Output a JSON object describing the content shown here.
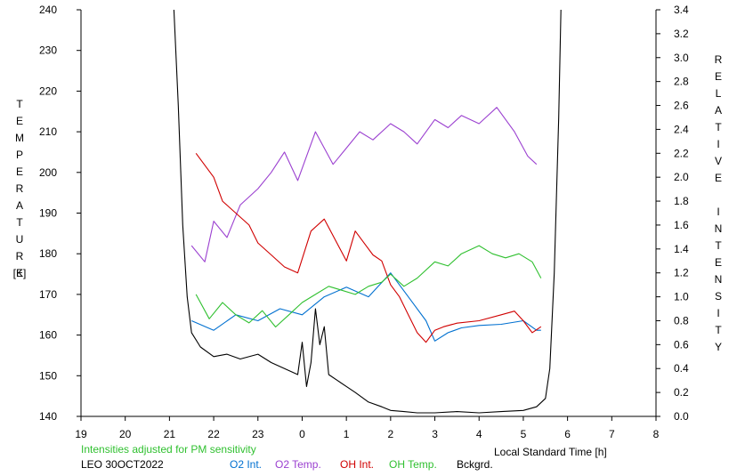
{
  "chart_data": {
    "type": "line",
    "title": "",
    "xlabel": "Local Standard Time [h]",
    "ylabel_left": "TEMPERATURE",
    "ylabel_left_unit": "[K]",
    "ylabel_right": "RELATIVE INTENSITY",
    "x_ticks": [
      "19",
      "20",
      "21",
      "22",
      "23",
      "0",
      "1",
      "2",
      "3",
      "4",
      "5",
      "6",
      "7",
      "8"
    ],
    "xlim": [
      19,
      32
    ],
    "ylim_left": [
      140,
      240
    ],
    "ylim_right": [
      0.0,
      3.4
    ],
    "y_left_ticks": [
      140,
      150,
      160,
      170,
      180,
      190,
      200,
      210,
      220,
      230,
      240
    ],
    "y_right_ticks": [
      "0.0",
      "0.2",
      "0.4",
      "0.6",
      "0.8",
      "1.0",
      "1.2",
      "1.4",
      "1.6",
      "1.8",
      "2.0",
      "2.2",
      "2.4",
      "2.6",
      "2.8",
      "3.0",
      "3.2",
      "3.4"
    ],
    "note": "Intensities adjusted for PM sensitivity",
    "station": "LEO 30OCT2022",
    "colors": {
      "o2_int": "#0070d0",
      "o2_temp": "#9b40d0",
      "oh_int": "#d00000",
      "oh_temp": "#30c030",
      "bckgrd": "#000000",
      "note": "#30c030"
    },
    "legend": [
      {
        "key": "o2_int",
        "label": "O2 Int."
      },
      {
        "key": "o2_temp",
        "label": "O2 Temp."
      },
      {
        "key": "oh_int",
        "label": "OH Int."
      },
      {
        "key": "oh_temp",
        "label": "OH Temp."
      },
      {
        "key": "bckgrd",
        "label": "Bckgrd."
      }
    ],
    "series": [
      {
        "name": "Bckgrd.",
        "key": "bckgrd",
        "axis": "right",
        "x": [
          21.1,
          21.2,
          21.3,
          21.4,
          21.5,
          21.7,
          22.0,
          22.3,
          22.6,
          23.0,
          23.3,
          23.6,
          23.9,
          24.0,
          24.1,
          24.2,
          24.3,
          24.4,
          24.5,
          24.6,
          24.8,
          25.0,
          25.2,
          25.5,
          25.8,
          26.0,
          26.3,
          26.6,
          27.0,
          27.5,
          28.0,
          28.5,
          29.0,
          29.3,
          29.5,
          29.6,
          29.7,
          29.8,
          29.85
        ],
        "y": [
          3.4,
          2.6,
          1.6,
          1.0,
          0.7,
          0.58,
          0.5,
          0.52,
          0.48,
          0.52,
          0.45,
          0.4,
          0.35,
          0.62,
          0.25,
          0.45,
          0.9,
          0.6,
          0.75,
          0.35,
          0.3,
          0.25,
          0.2,
          0.12,
          0.08,
          0.05,
          0.04,
          0.03,
          0.03,
          0.04,
          0.03,
          0.04,
          0.05,
          0.08,
          0.15,
          0.4,
          1.2,
          2.5,
          3.4
        ]
      },
      {
        "name": "O2 Int.",
        "key": "o2_int",
        "axis": "right",
        "x": [
          21.5,
          22.0,
          22.5,
          23.0,
          23.5,
          24.0,
          24.5,
          25.0,
          25.5,
          26.0,
          26.3,
          26.5,
          26.8,
          27.0,
          27.3,
          27.6,
          28.0,
          28.5,
          29.0,
          29.3,
          29.4
        ],
        "y": [
          0.8,
          0.72,
          0.85,
          0.8,
          0.9,
          0.85,
          1.0,
          1.08,
          1.0,
          1.2,
          1.05,
          0.95,
          0.8,
          0.63,
          0.7,
          0.74,
          0.76,
          0.77,
          0.8,
          0.72,
          0.72
        ]
      },
      {
        "name": "O2 Temp.",
        "key": "o2_temp",
        "axis": "left",
        "x": [
          21.5,
          21.8,
          22.0,
          22.3,
          22.6,
          23.0,
          23.3,
          23.6,
          23.9,
          24.3,
          24.7,
          25.0,
          25.3,
          25.6,
          26.0,
          26.3,
          26.6,
          27.0,
          27.3,
          27.6,
          28.0,
          28.4,
          28.8,
          29.1,
          29.3
        ],
        "y": [
          182,
          178,
          188,
          184,
          192,
          196,
          200,
          205,
          198,
          210,
          202,
          206,
          210,
          208,
          212,
          210,
          207,
          213,
          211,
          214,
          212,
          216,
          210,
          204,
          202
        ]
      },
      {
        "name": "OH Int.",
        "key": "oh_int",
        "axis": "right",
        "x": [
          21.6,
          21.8,
          22.0,
          22.2,
          22.5,
          22.8,
          23.0,
          23.3,
          23.6,
          23.9,
          24.2,
          24.5,
          25.0,
          25.2,
          25.4,
          25.6,
          25.8,
          26.0,
          26.2,
          26.4,
          26.6,
          26.8,
          27.0,
          27.2,
          27.5,
          28.0,
          28.5,
          28.8,
          29.0,
          29.2,
          29.4
        ],
        "y": [
          2.2,
          2.1,
          2.0,
          1.8,
          1.7,
          1.6,
          1.45,
          1.35,
          1.25,
          1.2,
          1.55,
          1.65,
          1.3,
          1.55,
          1.45,
          1.35,
          1.3,
          1.1,
          1.0,
          0.85,
          0.7,
          0.62,
          0.72,
          0.75,
          0.78,
          0.8,
          0.85,
          0.88,
          0.8,
          0.7,
          0.75
        ]
      },
      {
        "name": "OH Temp.",
        "key": "oh_temp",
        "axis": "left",
        "x": [
          21.6,
          21.9,
          22.2,
          22.5,
          22.8,
          23.1,
          23.4,
          23.7,
          24.0,
          24.3,
          24.6,
          24.9,
          25.2,
          25.5,
          25.8,
          26.0,
          26.3,
          26.6,
          27.0,
          27.3,
          27.6,
          28.0,
          28.3,
          28.6,
          28.9,
          29.2,
          29.4
        ],
        "y": [
          170,
          164,
          168,
          165,
          163,
          166,
          162,
          165,
          168,
          170,
          172,
          171,
          170,
          172,
          173,
          175,
          172,
          174,
          178,
          177,
          180,
          182,
          180,
          179,
          180,
          178,
          174
        ]
      }
    ]
  }
}
